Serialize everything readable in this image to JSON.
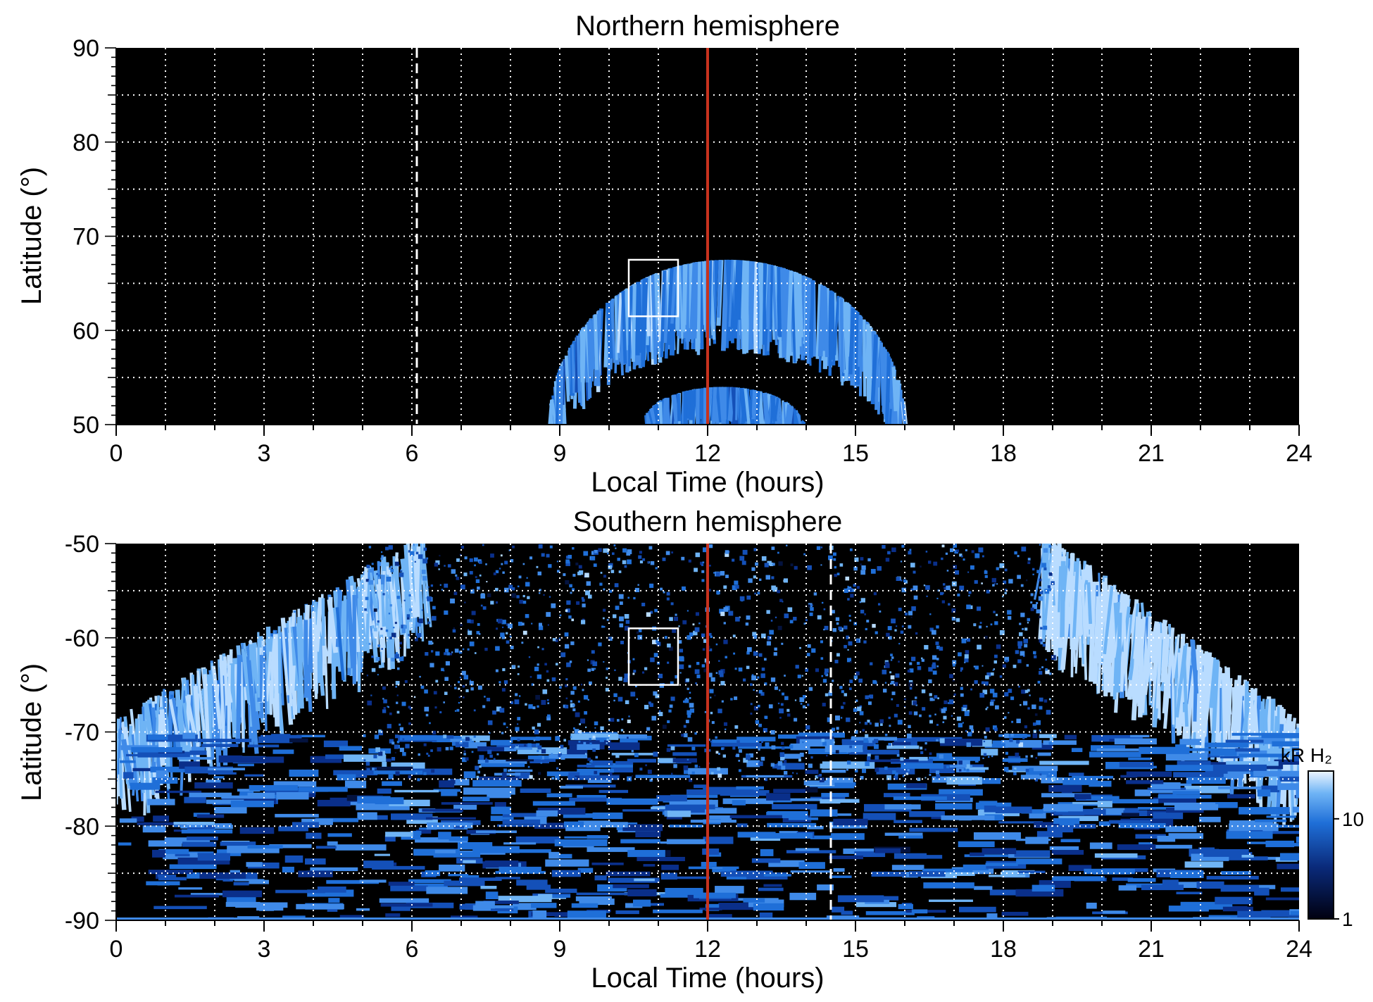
{
  "chart_data": [
    {
      "type": "heatmap",
      "title": "Northern hemisphere",
      "xlabel": "Local Time (hours)",
      "ylabel": "Latitude (°)",
      "xlim": [
        0,
        24
      ],
      "ylim": [
        50,
        90
      ],
      "xticks": [
        0,
        3,
        6,
        9,
        12,
        15,
        18,
        21,
        24
      ],
      "yticks": [
        50,
        60,
        70,
        80,
        90
      ],
      "grid": true,
      "dashed_line_x": 6.1,
      "red_line_x": 12,
      "box": {
        "x": [
          10.4,
          11.4
        ],
        "y": [
          61.5,
          67.5
        ]
      },
      "emission_bands": [
        {
          "name": "main",
          "center_x": 12.4,
          "half_width_x": 3.6,
          "inner_lat": 50,
          "outer_lat": 67.5,
          "intensity": 0.55
        },
        {
          "name": "inner",
          "center_x": 12.3,
          "half_width_x": 1.6,
          "inner_lat": 50,
          "outer_lat": 54,
          "intensity": 0.45
        }
      ]
    },
    {
      "type": "heatmap",
      "title": "Southern hemisphere",
      "xlabel": "Local Time (hours)",
      "ylabel": "Latitude (°)",
      "xlim": [
        0,
        24
      ],
      "ylim": [
        -90,
        -50
      ],
      "xticks": [
        0,
        3,
        6,
        9,
        12,
        15,
        18,
        21,
        24
      ],
      "yticks": [
        -90,
        -80,
        -70,
        -60,
        -50
      ],
      "grid": true,
      "dashed_line_x": 14.5,
      "red_line_x": 12,
      "box": {
        "x": [
          10.4,
          11.4
        ],
        "y": [
          -65,
          -59
        ]
      },
      "colorbar": {
        "label": "kR H₂",
        "ticks": [
          1,
          10
        ],
        "scale": "log",
        "range": [
          1,
          30
        ]
      }
    }
  ],
  "colors": {
    "red_line": "#c8321e",
    "background": "#000000",
    "grid": "#ffffff"
  }
}
